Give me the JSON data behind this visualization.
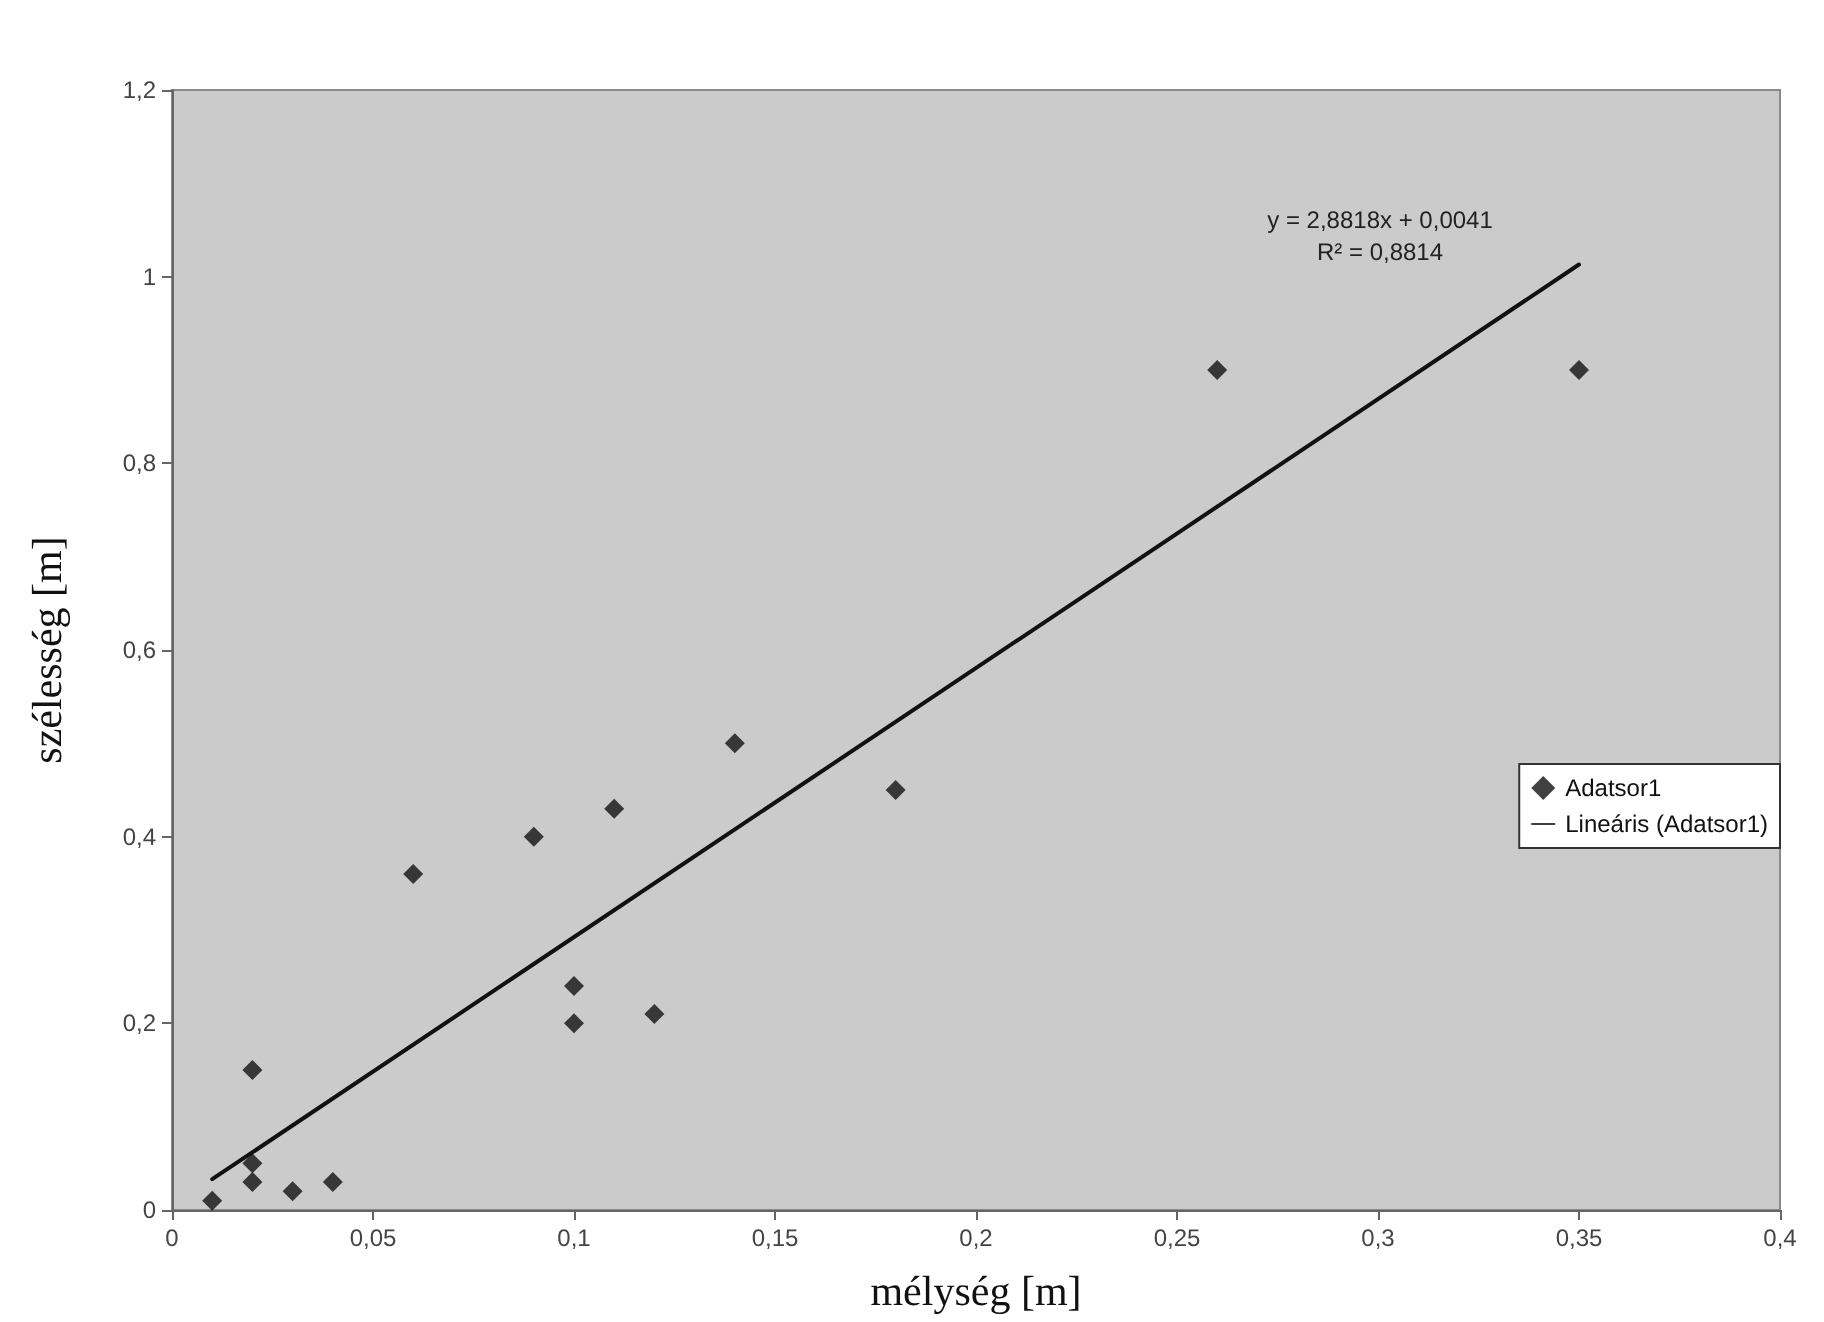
{
  "chart_data": {
    "type": "scatter",
    "xlabel": "mélység [m]",
    "ylabel": "szélesség [m]",
    "annotations": [
      "y = 2,8818x + 0,0041",
      "R² = 0,8814"
    ],
    "series": [
      {
        "name": "Adatsor1",
        "color": "#111111",
        "marker": "diamond",
        "x": [
          0.01,
          0.02,
          0.02,
          0.02,
          0.03,
          0.04,
          0.06,
          0.09,
          0.1,
          0.1,
          0.11,
          0.12,
          0.14,
          0.18,
          0.26,
          0.35
        ],
        "values": [
          0.01,
          0.15,
          0.05,
          0.03,
          0.02,
          0.03,
          0.36,
          0.4,
          0.24,
          0.2,
          0.43,
          0.21,
          0.5,
          0.45,
          0.9,
          0.9
        ]
      },
      {
        "name": "Lineáris (Adatsor1)",
        "type": "line",
        "color": "#111111",
        "marker": "none",
        "line_style": "solid",
        "x": [
          0.01,
          0.35
        ],
        "values": [
          0.033,
          1.013
        ]
      }
    ],
    "xlim": [
      0,
      0.4
    ],
    "xticks": [
      0,
      {
        "value": 0.05,
        "label": "0,05"
      },
      {
        "value": 0.1,
        "label": "0,1"
      },
      {
        "value": 0.15,
        "label": "0,15"
      },
      {
        "value": 0.2,
        "label": "0,2"
      },
      {
        "value": 0.25,
        "label": "0,25"
      },
      {
        "value": 0.3,
        "label": "0,3"
      },
      {
        "value": 0.35,
        "label": "0,35"
      },
      {
        "value": 0.4,
        "label": "0,4"
      }
    ],
    "ylim": [
      0,
      1.2
    ],
    "yticks": [
      0,
      {
        "value": 0.2,
        "label": "0,2"
      },
      {
        "value": 0.4,
        "label": "0,4"
      },
      {
        "value": 0.6,
        "label": "0,6"
      },
      {
        "value": 0.8,
        "label": "0,8"
      },
      1,
      {
        "value": 1.2,
        "label": "1,2"
      }
    ],
    "grid": false,
    "legend": "right"
  }
}
